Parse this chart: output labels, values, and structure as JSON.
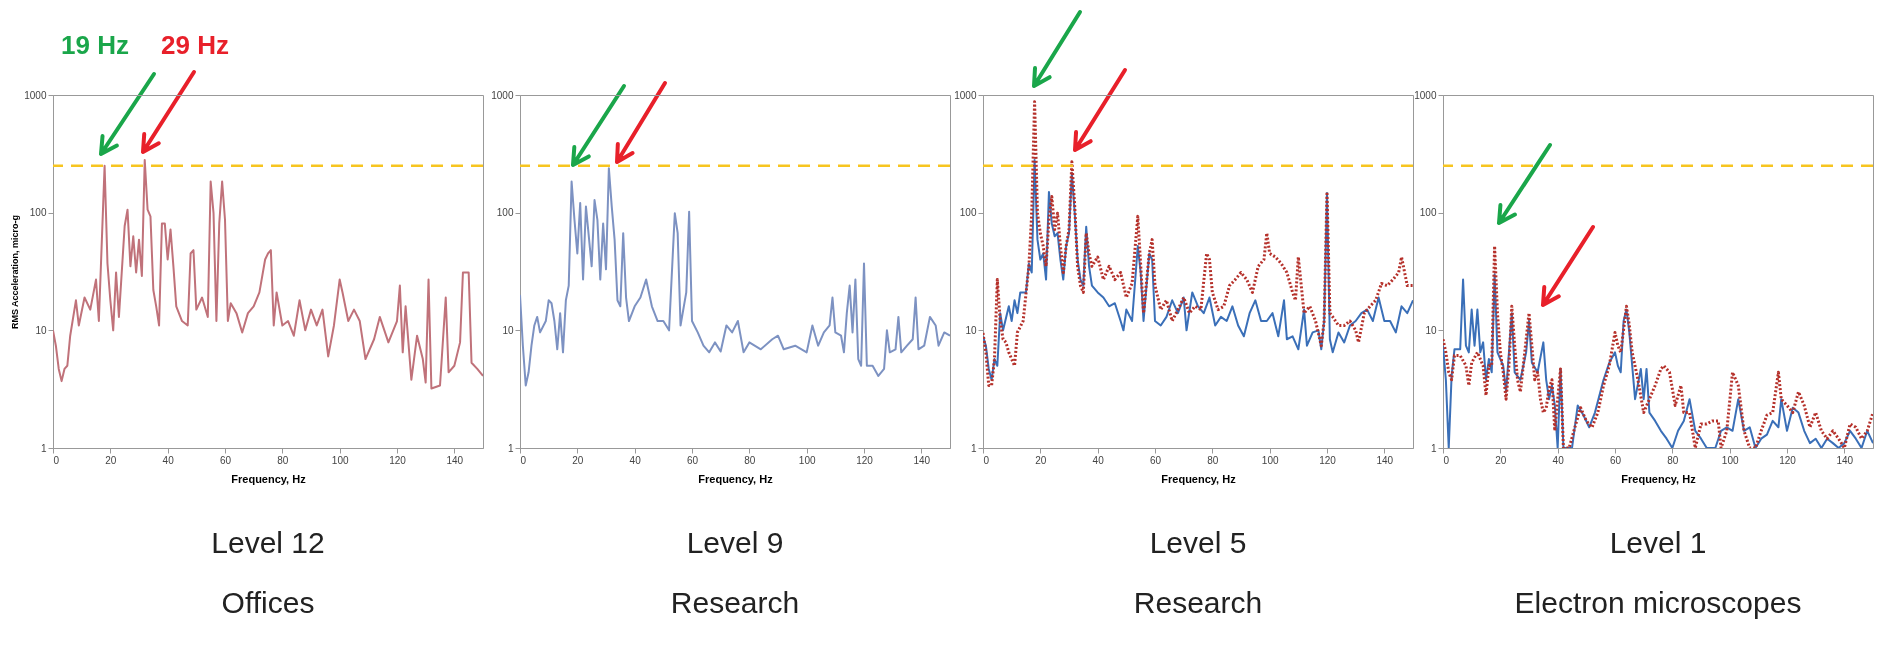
{
  "chart_data": [
    {
      "type": "line",
      "title": "Level 12",
      "subtitle": "Offices",
      "xlabel": "Frequency, Hz",
      "ylabel": "RMS Acceleration, micro-g",
      "log": true,
      "xlim": [
        0,
        150
      ],
      "xticks": [
        0,
        20,
        40,
        60,
        80,
        100,
        120,
        140
      ],
      "ylim": [
        1,
        1000
      ],
      "yticks": [
        1,
        10,
        100,
        1000
      ],
      "annotations": [
        "19 Hz",
        "29 Hz"
      ],
      "ref_lines": [
        {
          "axis": "y",
          "value": 250,
          "color": "#f7c520",
          "line_style": "dashed"
        }
      ],
      "series": [
        {
          "color": "#c0727a",
          "line_style": "solid",
          "x": [
            0,
            1,
            2,
            3,
            4,
            5,
            6,
            8,
            9,
            11,
            13,
            15,
            16,
            18,
            19,
            20,
            21,
            22,
            23,
            25,
            26,
            27,
            28,
            29,
            30,
            31,
            32,
            33,
            34,
            35,
            36,
            37,
            38,
            39,
            40,
            41,
            42,
            43,
            45,
            47,
            48,
            49,
            50,
            52,
            54,
            55,
            56,
            57,
            58,
            59,
            60,
            61,
            62,
            64,
            66,
            68,
            70,
            72,
            74,
            75,
            76,
            77,
            78,
            80,
            82,
            84,
            86,
            88,
            90,
            92,
            94,
            96,
            98,
            100,
            101,
            103,
            105,
            107,
            109,
            112,
            114,
            117,
            120,
            121,
            122,
            123,
            125,
            127,
            129,
            130,
            131,
            132,
            135,
            137,
            138,
            140,
            142,
            143,
            145,
            146,
            148,
            150
          ],
          "values": [
            10,
            7.4,
            4.7,
            3.7,
            4.7,
            5,
            9,
            18,
            11,
            19,
            15,
            27,
            12,
            250,
            37,
            18,
            10,
            31,
            13,
            77,
            106,
            35,
            63,
            31,
            59,
            29,
            280,
            106,
            93,
            22,
            16,
            11,
            81,
            81,
            40,
            72,
            35,
            16,
            12,
            11,
            45,
            48,
            15,
            19,
            13,
            184,
            99,
            12,
            81,
            184,
            87,
            12,
            17,
            14,
            9.6,
            14,
            16,
            21,
            40,
            45,
            48,
            11,
            21,
            11,
            12,
            9,
            18,
            10,
            15,
            11,
            15,
            6,
            11,
            27,
            21,
            12,
            15,
            12,
            5.7,
            8.4,
            13,
            7.9,
            12,
            24,
            6.5,
            16,
            3.8,
            9,
            5.7,
            3.6,
            27,
            3.2,
            3.4,
            19,
            4.4,
            5,
            7.9,
            31,
            31,
            5.3,
            4.7,
            4.1
          ]
        }
      ]
    },
    {
      "type": "line",
      "title": "Level 9",
      "subtitle": "Research",
      "xlabel": "Frequency, Hz",
      "log": true,
      "xlim": [
        0,
        150
      ],
      "xticks": [
        0,
        20,
        40,
        60,
        80,
        100,
        120,
        140
      ],
      "ylim": [
        1,
        1000
      ],
      "yticks": [
        1,
        10,
        100,
        1000
      ],
      "ref_lines": [
        {
          "axis": "y",
          "value": 250,
          "color": "#f7c520",
          "line_style": "dashed"
        }
      ],
      "series": [
        {
          "color": "#7d92c2",
          "line_style": "solid",
          "x": [
            0,
            1,
            2,
            3,
            4,
            5,
            6,
            7,
            9,
            10,
            11,
            12,
            13,
            14,
            15,
            16,
            17,
            18,
            19,
            20,
            21,
            22,
            23,
            25,
            26,
            27,
            28,
            29,
            30,
            31,
            32,
            33,
            34,
            35,
            36,
            37,
            38,
            40,
            42,
            44,
            46,
            48,
            50,
            52,
            54,
            55,
            56,
            58,
            59,
            60,
            62,
            64,
            66,
            68,
            70,
            72,
            74,
            76,
            78,
            80,
            84,
            88,
            90,
            92,
            96,
            100,
            102,
            104,
            106,
            108,
            109,
            110,
            112,
            113,
            114,
            115,
            116,
            117,
            118,
            119,
            120,
            121,
            123,
            125,
            127,
            128,
            129,
            131,
            132,
            133,
            135,
            137,
            138,
            139,
            141,
            143,
            145,
            146,
            148,
            150
          ],
          "values": [
            20,
            7.4,
            3.4,
            4.4,
            7.4,
            11,
            13,
            9.6,
            12,
            18,
            17,
            12,
            6.9,
            14,
            6.5,
            18,
            24,
            184,
            87,
            45,
            121,
            27,
            113,
            35,
            128,
            87,
            27,
            81,
            33,
            239,
            113,
            59,
            18,
            16,
            67,
            19,
            12,
            16,
            19,
            27,
            16,
            12,
            12,
            10,
            99,
            67,
            11,
            21,
            102,
            12,
            9.6,
            7.4,
            6.5,
            7.9,
            6.6,
            11,
            9.6,
            12,
            6.5,
            7.9,
            6.9,
            8.4,
            9,
            6.9,
            7.4,
            6.5,
            11,
            7.4,
            9.6,
            11,
            19,
            9.6,
            9,
            6.5,
            14,
            24,
            9.6,
            27,
            5.7,
            5,
            37,
            5,
            5,
            4.1,
            4.7,
            10,
            6.5,
            6.9,
            13,
            6.5,
            7.4,
            8.4,
            19,
            6.9,
            7.4,
            13,
            11,
            7.4,
            9.6,
            9
          ]
        }
      ]
    },
    {
      "type": "line",
      "title": "Level 5",
      "subtitle": "Research",
      "xlabel": "Frequency, Hz",
      "log": true,
      "xlim": [
        0,
        150
      ],
      "xticks": [
        0,
        20,
        40,
        60,
        80,
        100,
        120,
        140
      ],
      "ylim": [
        1,
        1000
      ],
      "yticks": [
        1,
        10,
        100,
        1000
      ],
      "ref_lines": [
        {
          "axis": "y",
          "value": 250,
          "color": "#f7c520",
          "line_style": "dashed"
        }
      ],
      "series": [
        {
          "color": "#3a6fb8",
          "line_style": "solid",
          "x": [
            0,
            1,
            2,
            3,
            4,
            5,
            6,
            7,
            9,
            10,
            11,
            12,
            13,
            15,
            16,
            17,
            18,
            19,
            20,
            21,
            22,
            23,
            24,
            25,
            26,
            27,
            28,
            29,
            30,
            31,
            32,
            33,
            34,
            35,
            36,
            37,
            38,
            40,
            42,
            44,
            46,
            48,
            49,
            50,
            52,
            54,
            55,
            56,
            58,
            59,
            60,
            62,
            64,
            66,
            68,
            70,
            71,
            73,
            75,
            77,
            79,
            81,
            83,
            85,
            87,
            89,
            91,
            93,
            95,
            97,
            99,
            101,
            103,
            105,
            106,
            108,
            110,
            112,
            113,
            115,
            117,
            118,
            119,
            120,
            121,
            122,
            124,
            126,
            128,
            130,
            132,
            134,
            136,
            138,
            140,
            142,
            144,
            146,
            148,
            150
          ],
          "values": [
            8.9,
            7.4,
            4.7,
            3.8,
            5.7,
            5,
            14,
            10,
            16,
            12,
            18,
            14,
            21,
            21,
            37,
            31,
            280,
            59,
            40,
            45,
            27,
            150,
            81,
            63,
            67,
            40,
            27,
            52,
            67,
            217,
            99,
            40,
            27,
            24,
            76,
            35,
            24,
            21,
            19,
            16,
            17,
            12,
            10,
            15,
            12,
            52,
            31,
            12,
            45,
            40,
            12,
            11,
            13,
            18,
            14,
            19,
            10,
            21,
            16,
            14,
            19,
            11,
            13,
            12,
            16,
            11,
            8.9,
            14,
            18,
            12,
            12,
            14,
            8.9,
            18,
            8.4,
            8.9,
            6.9,
            15,
            7.4,
            9.6,
            10,
            6.9,
            12,
            147,
            8.4,
            6.5,
            9.6,
            7.9,
            11,
            12,
            14,
            15,
            12,
            19,
            12,
            12,
            9.6,
            16,
            14,
            18
          ]
        },
        {
          "color": "#b5302a",
          "line_style": "dotted",
          "x": [
            0,
            1,
            2,
            3,
            4,
            5,
            6,
            7,
            8,
            9,
            11,
            12,
            14,
            16,
            17,
            18,
            19,
            20,
            21,
            22,
            23,
            24,
            25,
            26,
            27,
            28,
            29,
            30,
            31,
            32,
            33,
            34,
            35,
            36,
            37,
            38,
            40,
            42,
            44,
            46,
            48,
            50,
            52,
            54,
            56,
            58,
            59,
            60,
            62,
            64,
            66,
            68,
            70,
            72,
            74,
            76,
            78,
            79,
            80,
            82,
            84,
            86,
            88,
            90,
            92,
            94,
            96,
            98,
            99,
            100,
            102,
            104,
            106,
            108,
            109,
            110,
            112,
            114,
            116,
            118,
            119,
            120,
            121,
            122,
            124,
            126,
            128,
            130,
            131,
            133,
            135,
            137,
            139,
            141,
            143,
            145,
            146,
            148,
            150
          ],
          "values": [
            9.5,
            6.5,
            3.4,
            3.4,
            5.7,
            27,
            12,
            8.4,
            7.9,
            6.5,
            5,
            9.6,
            12,
            35,
            99,
            876,
            99,
            67,
            52,
            35,
            87,
            137,
            72,
            99,
            52,
            31,
            52,
            72,
            271,
            113,
            35,
            24,
            21,
            67,
            45,
            35,
            42,
            27,
            35,
            27,
            31,
            19,
            25,
            93,
            14,
            45,
            59,
            24,
            15,
            18,
            12,
            15,
            19,
            14,
            16,
            15,
            45,
            40,
            21,
            15,
            16,
            24,
            27,
            31,
            27,
            21,
            35,
            40,
            67,
            45,
            42,
            37,
            31,
            21,
            18,
            42,
            14,
            16,
            12,
            7.4,
            12,
            150,
            14,
            13,
            11,
            11,
            12,
            10,
            7.9,
            14,
            16,
            18,
            25,
            24,
            27,
            31,
            42,
            24,
            24
          ]
        }
      ]
    },
    {
      "type": "line",
      "title": "Level 1",
      "subtitle": "Electron microscopes",
      "xlabel": "Frequency, Hz",
      "log": true,
      "xlim": [
        0,
        150
      ],
      "xticks": [
        0,
        20,
        40,
        60,
        80,
        100,
        120,
        140
      ],
      "ylim": [
        1,
        1000
      ],
      "yticks": [
        1,
        10,
        100,
        1000
      ],
      "ref_lines": [
        {
          "axis": "y",
          "value": 250,
          "color": "#f7c520",
          "line_style": "dashed"
        }
      ],
      "series": [
        {
          "color": "#3a6fb8",
          "line_style": "solid",
          "x": [
            0,
            1,
            2,
            3,
            4,
            6,
            7,
            8,
            9,
            10,
            11,
            12,
            13,
            14,
            15,
            16,
            17,
            18,
            19,
            21,
            22,
            24,
            25,
            27,
            29,
            30,
            31,
            33,
            35,
            36,
            37,
            38,
            39,
            40,
            41,
            42,
            45,
            47,
            49,
            51,
            53,
            56,
            58,
            60,
            61,
            62,
            63,
            64,
            65,
            67,
            69,
            70,
            71,
            72,
            74,
            76,
            78,
            80,
            82,
            84,
            86,
            88,
            90,
            92,
            95,
            97,
            99,
            101,
            103,
            105,
            107,
            109,
            111,
            113,
            115,
            117,
            118,
            120,
            122,
            124,
            126,
            128,
            130,
            132,
            134,
            136,
            138,
            140,
            142,
            144,
            146,
            148,
            150
          ],
          "values": [
            7.4,
            3.8,
            1,
            4.1,
            6.9,
            6.9,
            27,
            7.4,
            6.5,
            15,
            7.4,
            15,
            6.5,
            7.9,
            3.8,
            5.7,
            4.4,
            30,
            6.5,
            5,
            3,
            14,
            4.4,
            3.8,
            6.5,
            12,
            5.3,
            4.4,
            7.9,
            3.8,
            2.6,
            3.4,
            2.3,
            1,
            4.7,
            1,
            1,
            2.3,
            1.9,
            1.5,
            2,
            3.8,
            5.3,
            6.5,
            5,
            4.4,
            12,
            15,
            9.6,
            2.6,
            4.7,
            2.6,
            4.7,
            2,
            1.7,
            1.4,
            1.2,
            1,
            1.4,
            1.7,
            2.6,
            1.4,
            1.2,
            1,
            1,
            1.4,
            1.5,
            1.4,
            2.6,
            1.4,
            1.5,
            1,
            1.2,
            1.3,
            1.7,
            1.5,
            2.6,
            1.4,
            2.2,
            2,
            1.4,
            1.1,
            1.2,
            1,
            1.2,
            1.1,
            1,
            1.1,
            1.4,
            1.2,
            1,
            1.4,
            1.1
          ]
        },
        {
          "color": "#b5302a",
          "line_style": "dotted",
          "x": [
            0,
            1,
            2,
            3,
            4,
            6,
            8,
            9,
            10,
            12,
            14,
            15,
            16,
            17,
            18,
            19,
            20,
            21,
            22,
            23,
            24,
            25,
            26,
            27,
            28,
            30,
            31,
            32,
            33,
            34,
            35,
            36,
            37,
            38,
            39,
            40,
            41,
            42,
            44,
            46,
            48,
            50,
            52,
            54,
            56,
            58,
            60,
            61,
            62,
            64,
            65,
            66,
            68,
            70,
            72,
            74,
            76,
            77,
            79,
            81,
            83,
            84,
            86,
            88,
            90,
            92,
            94,
            96,
            97,
            99,
            101,
            103,
            105,
            107,
            109,
            111,
            113,
            115,
            117,
            118,
            120,
            122,
            124,
            126,
            128,
            130,
            132,
            134,
            136,
            138,
            140,
            142,
            144,
            146,
            148,
            150
          ],
          "values": [
            8.4,
            6.5,
            4.4,
            3.8,
            6.1,
            6.1,
            5,
            3.4,
            5.3,
            6.5,
            5,
            2.8,
            5,
            5,
            52,
            14,
            6.5,
            4.4,
            2.6,
            5,
            16,
            7.4,
            3.8,
            3,
            5,
            14,
            7.4,
            3.8,
            4.4,
            2.6,
            2,
            2.2,
            3.2,
            3.8,
            1.4,
            2.6,
            4.7,
            1,
            1,
            1.5,
            2.2,
            1.7,
            1.5,
            2,
            3.4,
            5,
            9.6,
            7.4,
            6.5,
            16,
            11,
            6.5,
            3.8,
            2,
            2.6,
            3.4,
            4.7,
            5,
            4.4,
            2.3,
            3.4,
            2,
            2,
            1,
            1.6,
            1.6,
            1.7,
            1.7,
            1,
            1.4,
            4.4,
            3.4,
            1.4,
            1,
            1,
            1.4,
            1.9,
            2,
            4.4,
            2.6,
            2.3,
            2,
            3,
            2.3,
            1.5,
            2,
            1.4,
            1.2,
            1.4,
            1.2,
            1,
            1.6,
            1.5,
            1.2,
            1.4,
            2
          ]
        }
      ]
    }
  ]
}
